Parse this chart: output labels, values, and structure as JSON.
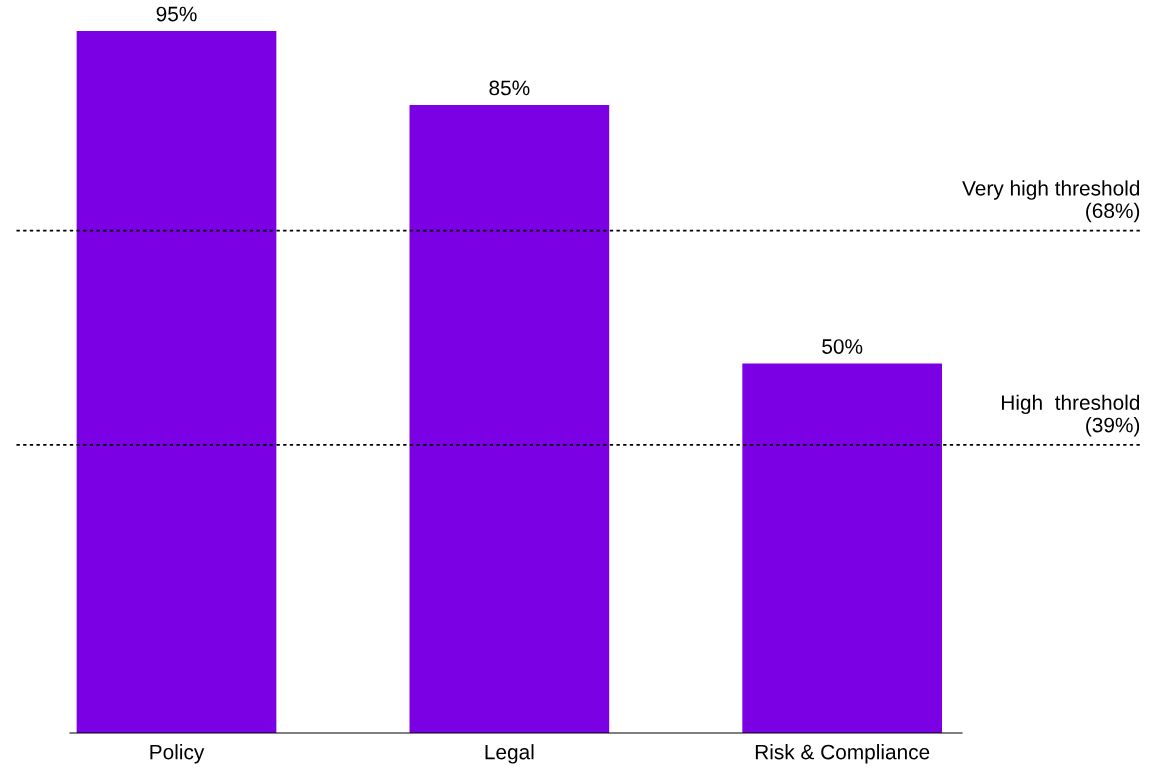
{
  "chart_data": {
    "type": "bar",
    "categories": [
      "Policy",
      "Legal",
      "Risk & Compliance"
    ],
    "values": [
      95,
      85,
      50
    ],
    "value_labels": [
      "95%",
      "85%",
      "50%"
    ],
    "color": "#7b00e3",
    "ref_lines": [
      {
        "axis": "y",
        "value": 68,
        "label": "Very high threshold\n(68%)",
        "line_style": "dotted",
        "color": "#000000"
      },
      {
        "axis": "y",
        "value": 39,
        "label": "High  threshold\n(39%)",
        "line_style": "dotted",
        "color": "#000000"
      }
    ],
    "grid": false
  }
}
